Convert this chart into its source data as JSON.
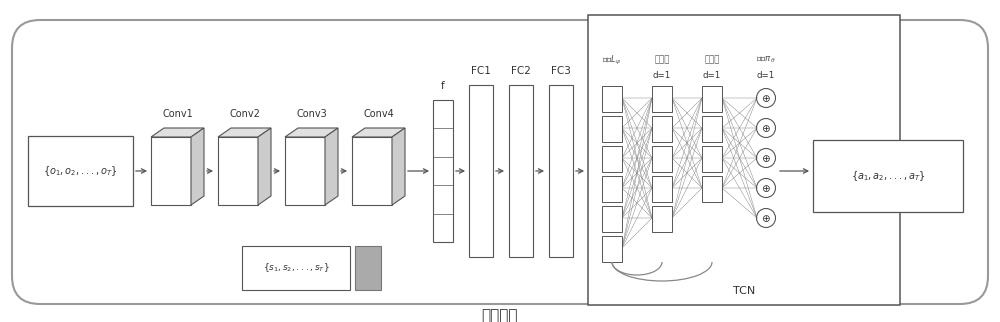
{
  "bg_color": "#ffffff",
  "border_color": "#999999",
  "box_color": "#ffffff",
  "box_edge": "#555555",
  "gray_color": "#aaaaaa",
  "arrow_color": "#555555",
  "text_color": "#333333",
  "title": "网络结构",
  "input_label": "$\\{o_1, o_2, ..., o_T\\}$",
  "output_label": "$\\{a_1, a_2, ..., a_T\\}$",
  "state_label": "$\\{s_1, s_2, ..., s_T\\}$",
  "conv_labels": [
    "Conv1",
    "Conv2",
    "Conv3",
    "Conv4"
  ],
  "fc_labels": [
    "f",
    "FC1",
    "FC2",
    "FC3"
  ],
  "tcn_title": "TCN",
  "tcn_col_labels": [
    "输入$L_\\psi$",
    "隐含层",
    "隐含层",
    "输出$\\pi_\\theta$"
  ],
  "d_labels": [
    "d=1",
    "d=1",
    "d=1"
  ],
  "plus_symbol": "$\\oplus$",
  "figw": 10.0,
  "figh": 3.22,
  "dpi": 100
}
